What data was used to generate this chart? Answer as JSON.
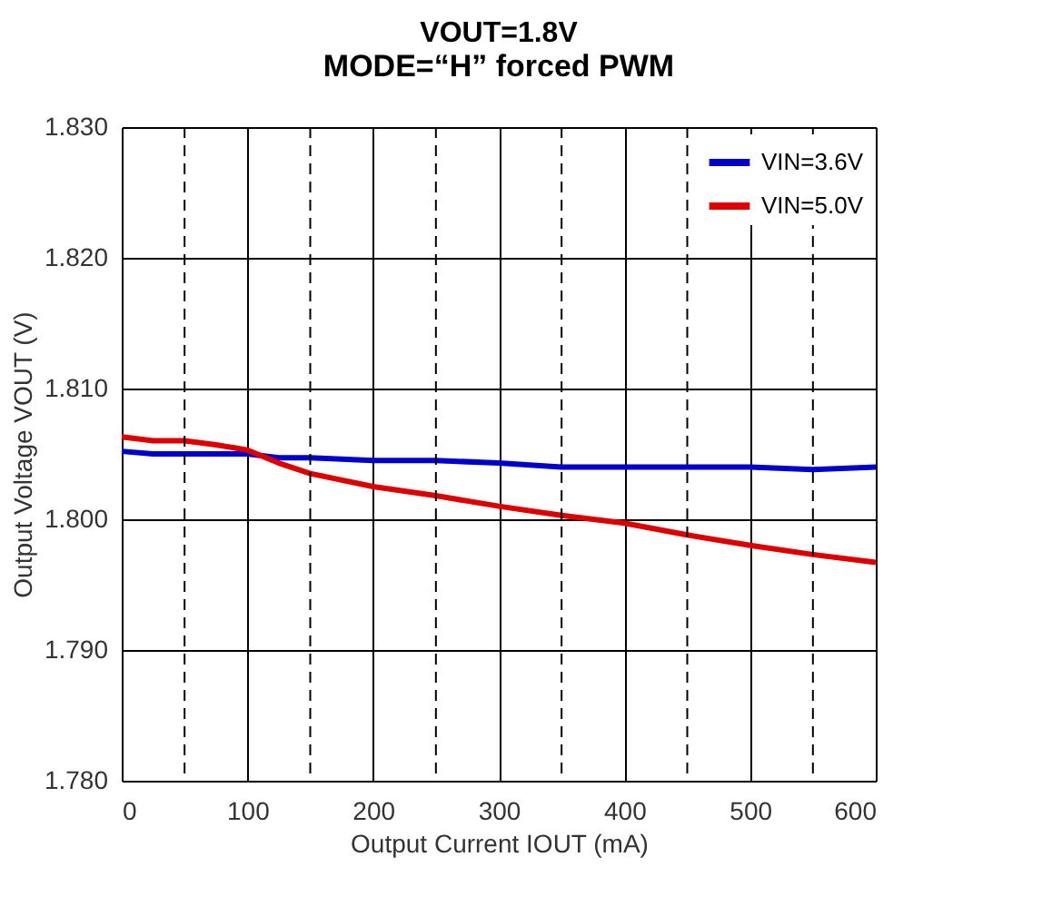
{
  "chart_data": {
    "type": "line",
    "title": "VOUT=1.8V",
    "subtitle": "MODE=“H” forced PWM",
    "xlabel": "Output Current IOUT (mA)",
    "ylabel": "Output Voltage VOUT (V)",
    "x": [
      0,
      25,
      50,
      75,
      100,
      125,
      150,
      200,
      250,
      300,
      350,
      400,
      450,
      500,
      550,
      600
    ],
    "series": [
      {
        "name": "VIN=3.6V",
        "color": "#0000cc",
        "values": [
          1.8052,
          1.805,
          1.805,
          1.805,
          1.805,
          1.8047,
          1.8047,
          1.8045,
          1.8045,
          1.8043,
          1.804,
          1.804,
          1.804,
          1.804,
          1.8038,
          1.804
        ]
      },
      {
        "name": "VIN=5.0V",
        "color": "#dd0000",
        "values": [
          1.8063,
          1.806,
          1.806,
          1.8057,
          1.8053,
          1.8043,
          1.8035,
          1.8025,
          1.8018,
          1.801,
          1.8003,
          1.7997,
          1.7988,
          1.798,
          1.7973,
          1.7967
        ]
      }
    ],
    "xlim": [
      0,
      600
    ],
    "xticks": [
      0,
      100,
      200,
      300,
      400,
      500,
      600
    ],
    "ylim": [
      1.78,
      1.83
    ],
    "yticks": [
      {
        "value": 1.78,
        "label": "1.780"
      },
      {
        "value": 1.79,
        "label": "1.790"
      },
      {
        "value": 1.8,
        "label": "1.800"
      },
      {
        "value": 1.81,
        "label": "1.810"
      },
      {
        "value": 1.82,
        "label": "1.820"
      },
      {
        "value": 1.83,
        "label": "1.830"
      }
    ],
    "ref_lines": [
      {
        "axis": "x",
        "value": 50,
        "line_style": "dashed"
      },
      {
        "axis": "x",
        "value": 150,
        "line_style": "dashed"
      },
      {
        "axis": "x",
        "value": 250,
        "line_style": "dashed"
      },
      {
        "axis": "x",
        "value": 350,
        "line_style": "dashed"
      },
      {
        "axis": "x",
        "value": 450,
        "line_style": "dashed"
      },
      {
        "axis": "x",
        "value": 550,
        "line_style": "dashed"
      }
    ],
    "grid": true,
    "legend": "top right",
    "line_style": "solid",
    "marker": "none"
  }
}
